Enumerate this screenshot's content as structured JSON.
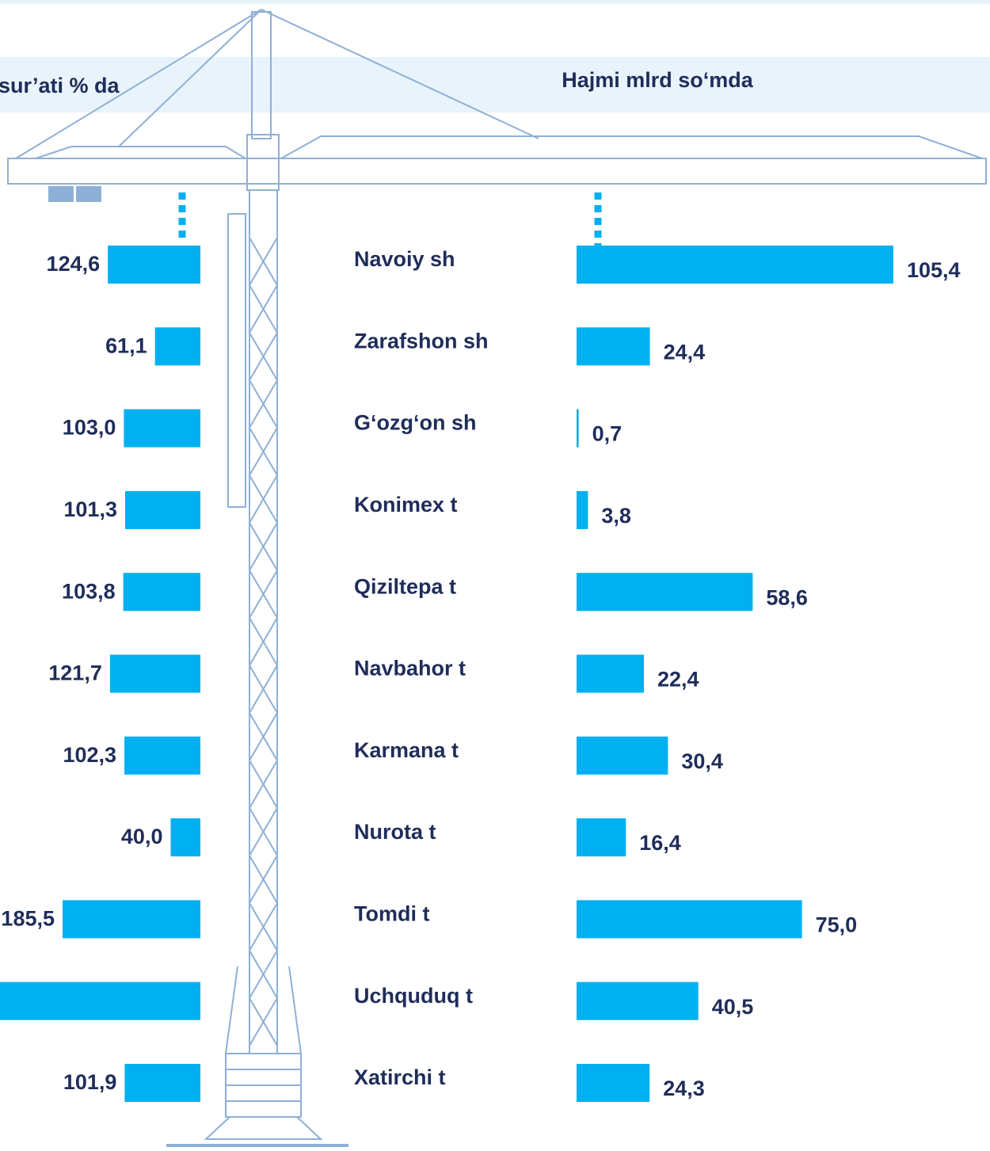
{
  "chart_data": [
    {
      "type": "bar",
      "title": "sur’ati % da",
      "color": "#00b0f0",
      "values": [
        124.6,
        61.1,
        103.0,
        101.3,
        103.8,
        121.7,
        102.3,
        40.0,
        185.5,
        300,
        101.9
      ],
      "value_labels": [
        "124,6",
        "61,1",
        "103,0",
        "101,3",
        "103,8",
        "121,7",
        "102,3",
        "40,0",
        "185,5",
        null,
        "101,9"
      ]
    },
    {
      "type": "bar",
      "title": "Hajmi mlrd so‘mda",
      "color": "#00b0f0",
      "categories": [
        "Navoiy sh",
        "Zarafshon sh",
        "G‘ozg‘on sh",
        "Konimex t",
        "Qiziltepa t",
        "Navbahor t",
        "Karmana t",
        "Nurota t",
        "Tomdi t",
        "Uchquduq t",
        "Xatirchi t"
      ],
      "values": [
        105.4,
        24.4,
        0.7,
        3.8,
        58.6,
        22.4,
        30.4,
        16.4,
        75.0,
        40.5,
        24.3
      ],
      "value_labels": [
        "105,4",
        "24,4",
        "0,7",
        "3,8",
        "58,6",
        "22,4",
        "30,4",
        "16,4",
        "75,0",
        "40,5",
        "24,3"
      ]
    }
  ]
}
